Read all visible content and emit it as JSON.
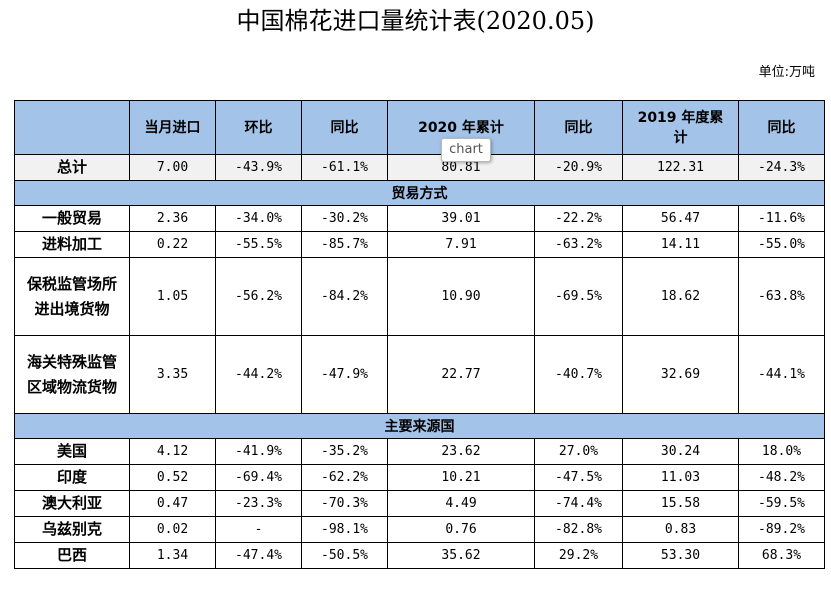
{
  "title": "中国棉花进口量统计表(2020.05)",
  "unit": "单位:万吨",
  "tooltip": "chart",
  "headers": [
    "",
    "当月进口",
    "环比",
    "同比",
    "2020 年累计",
    "同比",
    "2019 年度累计",
    "同比"
  ],
  "total": {
    "label": "总计",
    "values": [
      "7.00",
      "-43.9%",
      "-61.1%",
      "80.81",
      "-20.9%",
      "122.31",
      "-24.3%"
    ]
  },
  "section_trade": "贸易方式",
  "trade_rows": [
    {
      "label": "一般贸易",
      "values": [
        "2.36",
        "-34.0%",
        "-30.2%",
        "39.01",
        "-22.2%",
        "56.47",
        "-11.6%"
      ]
    },
    {
      "label": "进料加工",
      "values": [
        "0.22",
        "-55.5%",
        "-85.7%",
        "7.91",
        "-63.2%",
        "14.11",
        "-55.0%"
      ]
    },
    {
      "label": "保税监管场所进出境货物",
      "values": [
        "1.05",
        "-56.2%",
        "-84.2%",
        "10.90",
        "-69.5%",
        "18.62",
        "-63.8%"
      ]
    },
    {
      "label": "海关特殊监管区域物流货物",
      "values": [
        "3.35",
        "-44.2%",
        "-47.9%",
        "22.77",
        "-40.7%",
        "32.69",
        "-44.1%"
      ]
    }
  ],
  "section_source": "主要来源国",
  "source_rows": [
    {
      "label": "美国",
      "values": [
        "4.12",
        "-41.9%",
        "-35.2%",
        "23.62",
        "27.0%",
        "30.24",
        "18.0%"
      ]
    },
    {
      "label": "印度",
      "values": [
        "0.52",
        "-69.4%",
        "-62.2%",
        "10.21",
        "-47.5%",
        "11.03",
        "-48.2%"
      ]
    },
    {
      "label": "澳大利亚",
      "values": [
        "0.47",
        "-23.3%",
        "-70.3%",
        "4.49",
        "-74.4%",
        "15.58",
        "-59.5%"
      ]
    },
    {
      "label": "乌兹别克",
      "values": [
        "0.02",
        "-",
        "-98.1%",
        "0.76",
        "-82.8%",
        "0.83",
        "-89.2%"
      ]
    },
    {
      "label": "巴西",
      "values": [
        "1.34",
        "-47.4%",
        "-50.5%",
        "35.62",
        "29.2%",
        "53.30",
        "68.3%"
      ]
    }
  ]
}
